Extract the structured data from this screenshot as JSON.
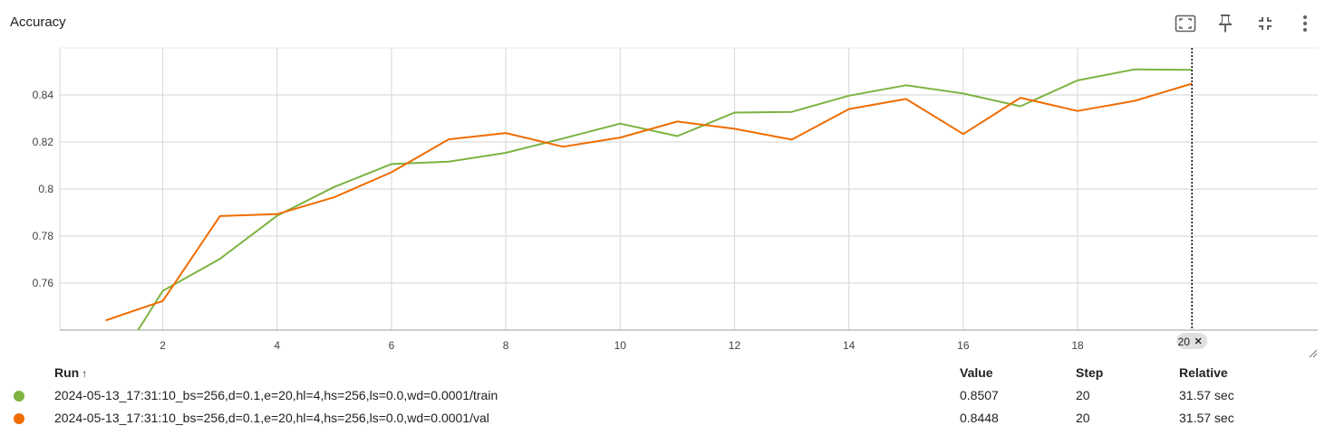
{
  "card": {
    "title": "Accuracy",
    "toolbar": [
      {
        "icon": "fit-to-data-icon"
      },
      {
        "icon": "pin-icon"
      },
      {
        "icon": "collapse-icon"
      },
      {
        "icon": "more-vert-icon"
      }
    ]
  },
  "chart_data": {
    "type": "line",
    "title": "Accuracy",
    "xlim": [
      0.2,
      22.2
    ],
    "ylim": [
      0.74,
      0.86
    ],
    "x_ticks": [
      2,
      4,
      6,
      8,
      10,
      12,
      14,
      16,
      18
    ],
    "y_ticks": [
      0.76,
      0.78,
      0.8,
      0.82,
      0.84
    ],
    "y_tick_labels": [
      "0.76",
      "0.78",
      "0.8",
      "0.82",
      "0.84"
    ],
    "grid": true,
    "hover_step": 20,
    "hover_chip_label": "20",
    "series": [
      {
        "color": "#7cb342",
        "x": [
          1,
          2,
          3,
          4,
          5,
          6,
          7,
          8,
          9,
          10,
          11,
          12,
          13,
          14,
          15,
          16,
          17,
          18,
          19,
          20
        ],
        "y": [
          0.718,
          0.7567,
          0.7703,
          0.7886,
          0.8009,
          0.8106,
          0.8116,
          0.8154,
          0.8215,
          0.8278,
          0.8225,
          0.8325,
          0.8328,
          0.8397,
          0.8441,
          0.8406,
          0.8352,
          0.8462,
          0.8509,
          0.8507
        ]
      },
      {
        "color": "#ef6c00",
        "x": [
          1,
          2,
          3,
          4,
          5,
          6,
          7,
          8,
          9,
          10,
          11,
          12,
          13,
          14,
          15,
          16,
          17,
          18,
          19,
          20
        ],
        "y": [
          0.7441,
          0.7524,
          0.7885,
          0.7893,
          0.7965,
          0.8071,
          0.8211,
          0.8238,
          0.818,
          0.8219,
          0.8287,
          0.8256,
          0.821,
          0.834,
          0.8383,
          0.8234,
          0.8388,
          0.8332,
          0.8375,
          0.8448
        ]
      }
    ]
  },
  "table": {
    "headers": {
      "run": "Run",
      "sort_arrow": "↑",
      "value": "Value",
      "step": "Step",
      "relative": "Relative"
    },
    "rows": [
      {
        "color": "#7cb342",
        "run": "2024-05-13_17:31:10_bs=256,d=0.1,e=20,hl=4,hs=256,ls=0.0,wd=0.0001/train",
        "value": "0.8507",
        "step": "20",
        "relative": "31.57 sec"
      },
      {
        "color": "#ef6c00",
        "run": "2024-05-13_17:31:10_bs=256,d=0.1,e=20,hl=4,hs=256,ls=0.0,wd=0.0001/val",
        "value": "0.8448",
        "step": "20",
        "relative": "31.57 sec"
      }
    ]
  }
}
